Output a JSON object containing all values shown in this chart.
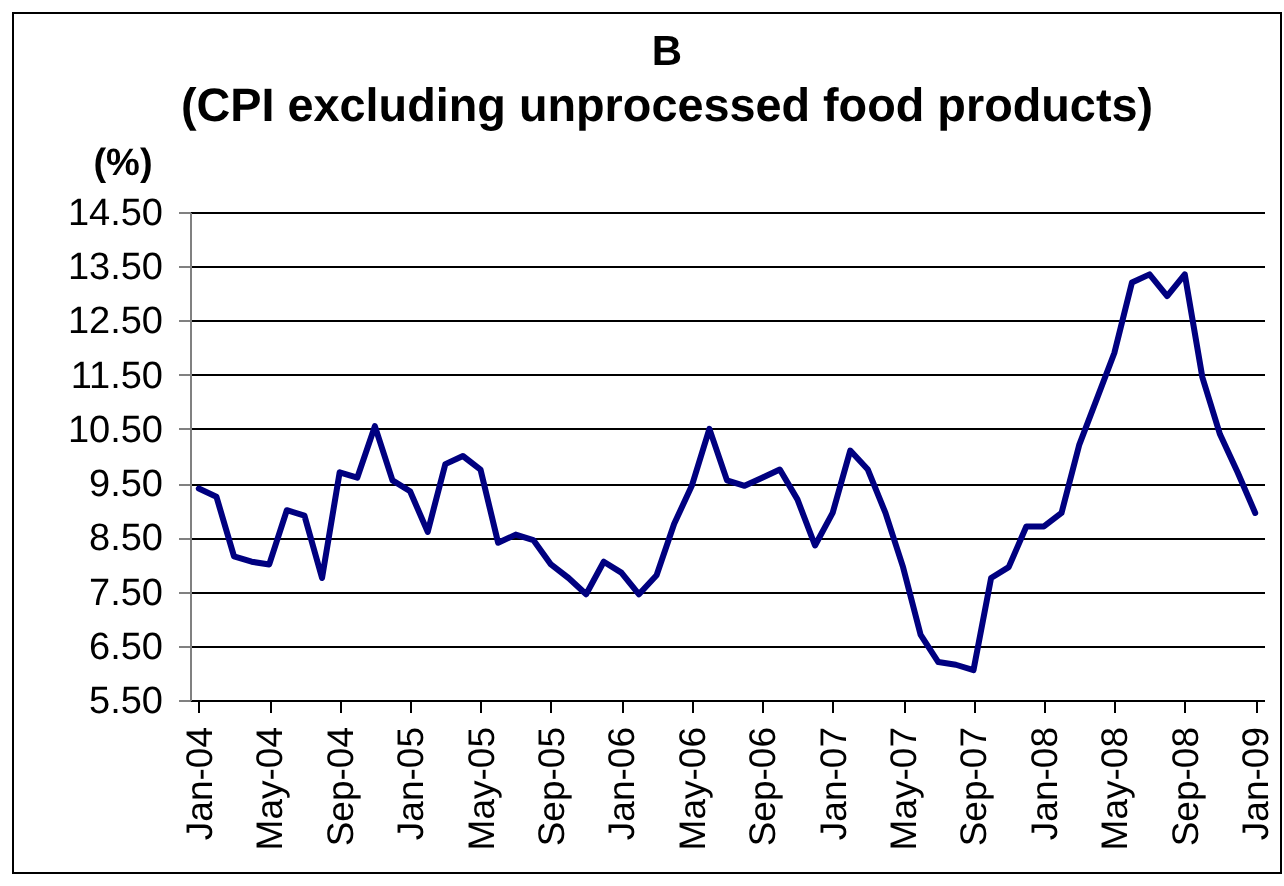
{
  "chart_data": {
    "type": "line",
    "title": "B",
    "subtitle": "(CPI excluding unprocessed food products)",
    "ylabel": "(%)",
    "categories": [
      "Jan-04",
      null,
      null,
      null,
      "May-04",
      null,
      null,
      null,
      "Sep-04",
      null,
      null,
      null,
      "Jan-05",
      null,
      null,
      null,
      "May-05",
      null,
      null,
      null,
      "Sep-05",
      null,
      null,
      null,
      "Jan-06",
      null,
      null,
      null,
      "May-06",
      null,
      null,
      null,
      "Sep-06",
      null,
      null,
      null,
      "Jan-07",
      null,
      null,
      null,
      "May-07",
      null,
      null,
      null,
      "Sep-07",
      null,
      null,
      null,
      "Jan-08",
      null,
      null,
      null,
      "May-08",
      null,
      null,
      null,
      "Sep-08",
      null,
      null,
      null,
      "Jan-09"
    ],
    "series": [
      {
        "color": "#000080",
        "values": [
          9.4,
          9.25,
          8.15,
          8.05,
          8.0,
          9.0,
          8.9,
          7.75,
          9.7,
          9.6,
          10.55,
          9.55,
          9.35,
          8.6,
          9.85,
          10.0,
          9.75,
          8.4,
          8.55,
          8.45,
          8.0,
          7.75,
          7.45,
          8.05,
          7.85,
          7.45,
          7.8,
          8.75,
          9.45,
          10.5,
          9.55,
          9.45,
          9.6,
          9.75,
          9.2,
          8.35,
          8.95,
          10.1,
          9.75,
          8.95,
          7.95,
          6.7,
          6.2,
          6.15,
          6.05,
          7.75,
          7.95,
          8.7,
          8.7,
          8.95,
          10.2,
          11.05,
          11.9,
          13.2,
          13.35,
          12.95,
          13.35,
          11.45,
          10.4,
          9.7,
          8.95
        ]
      }
    ],
    "ylim": [
      5.5,
      14.5
    ],
    "yticks": [
      {
        "value": 5.5,
        "label": "5.50"
      },
      {
        "value": 6.5,
        "label": "6.50"
      },
      {
        "value": 7.5,
        "label": "7.50"
      },
      {
        "value": 8.5,
        "label": "8.50"
      },
      {
        "value": 9.5,
        "label": "9.50"
      },
      {
        "value": 10.5,
        "label": "10.50"
      },
      {
        "value": 11.5,
        "label": "11.50"
      },
      {
        "value": 12.5,
        "label": "12.50"
      },
      {
        "value": 13.5,
        "label": "13.50"
      },
      {
        "value": 14.5,
        "label": "14.50"
      }
    ],
    "grid": "y",
    "line_style": "solid"
  }
}
